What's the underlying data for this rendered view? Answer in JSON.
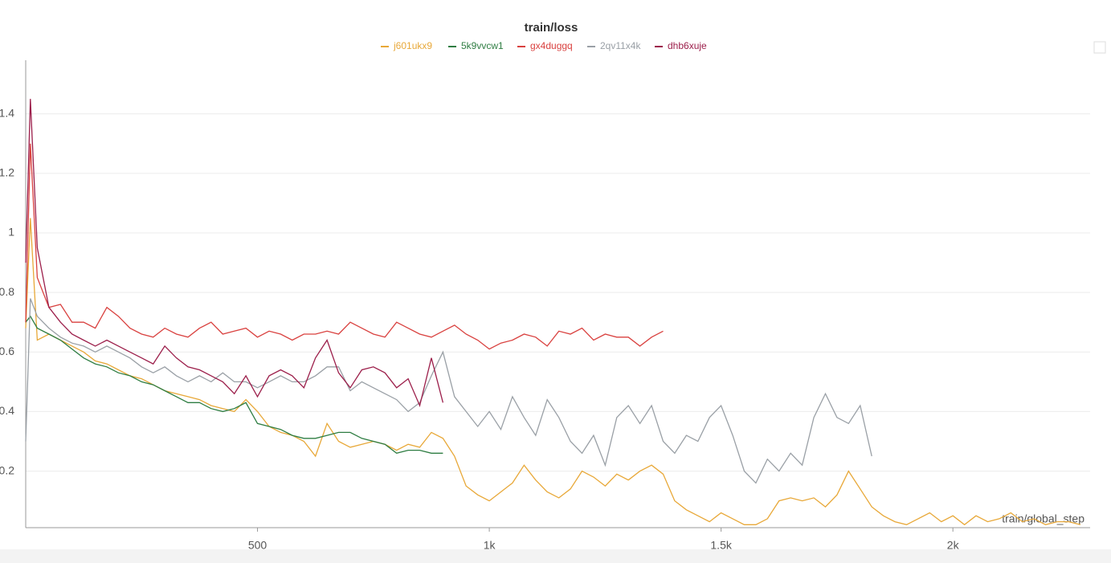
{
  "chart_data": {
    "type": "line",
    "title": "train/loss",
    "x_label": "train/global_step",
    "xlim": [
      0,
      2296
    ],
    "ylim": [
      0.01,
      1.58
    ],
    "xticks": [
      500,
      {
        "value": 1000,
        "label": "1k"
      },
      {
        "value": 1500,
        "label": "1.5k"
      },
      {
        "value": 2000,
        "label": "2k"
      }
    ],
    "yticks": [
      0.2,
      0.4,
      0.6,
      0.8,
      1,
      1.2,
      1.4
    ],
    "grid": true,
    "series": [
      {
        "name": "j601ukx9",
        "color": "#e8a838",
        "x": [
          0,
          10,
          25,
          50,
          75,
          100,
          125,
          150,
          175,
          200,
          225,
          250,
          275,
          300,
          325,
          350,
          375,
          400,
          425,
          450,
          475,
          500,
          525,
          550,
          575,
          600,
          625,
          650,
          675,
          700,
          725,
          750,
          775,
          800,
          825,
          850,
          875,
          900,
          925,
          950,
          975,
          1000,
          1025,
          1050,
          1075,
          1100,
          1125,
          1150,
          1175,
          1200,
          1225,
          1250,
          1275,
          1300,
          1325,
          1350,
          1375,
          1400,
          1425,
          1450,
          1475,
          1500,
          1525,
          1550,
          1575,
          1600,
          1625,
          1650,
          1675,
          1700,
          1725,
          1750,
          1775,
          1800,
          1825,
          1850,
          1875,
          1900,
          1925,
          1950,
          1975,
          2000,
          2025,
          2050,
          2075,
          2100,
          2125,
          2150,
          2175,
          2200,
          2225,
          2250,
          2275
        ],
        "values": [
          0.68,
          1.05,
          0.64,
          0.66,
          0.64,
          0.62,
          0.6,
          0.57,
          0.56,
          0.54,
          0.52,
          0.51,
          0.49,
          0.47,
          0.46,
          0.45,
          0.44,
          0.42,
          0.41,
          0.4,
          0.44,
          0.4,
          0.35,
          0.33,
          0.32,
          0.3,
          0.25,
          0.36,
          0.3,
          0.28,
          0.29,
          0.3,
          0.29,
          0.27,
          0.29,
          0.28,
          0.33,
          0.31,
          0.25,
          0.15,
          0.12,
          0.1,
          0.13,
          0.16,
          0.22,
          0.17,
          0.13,
          0.11,
          0.14,
          0.2,
          0.18,
          0.15,
          0.19,
          0.17,
          0.2,
          0.22,
          0.19,
          0.1,
          0.07,
          0.05,
          0.03,
          0.06,
          0.04,
          0.02,
          0.02,
          0.04,
          0.1,
          0.11,
          0.1,
          0.11,
          0.08,
          0.12,
          0.2,
          0.14,
          0.08,
          0.05,
          0.03,
          0.02,
          0.04,
          0.06,
          0.03,
          0.05,
          0.02,
          0.05,
          0.03,
          0.04,
          0.06,
          0.03,
          0.04,
          0.02,
          0.03,
          0.03,
          0.02
        ]
      },
      {
        "name": "5k9vvcw1",
        "color": "#2e7d42",
        "x": [
          0,
          10,
          25,
          50,
          75,
          100,
          125,
          150,
          175,
          200,
          225,
          250,
          275,
          300,
          325,
          350,
          375,
          400,
          425,
          450,
          475,
          500,
          525,
          550,
          575,
          600,
          625,
          650,
          675,
          700,
          725,
          750,
          775,
          800,
          825,
          850,
          875,
          900
        ],
        "values": [
          0.7,
          0.72,
          0.68,
          0.66,
          0.64,
          0.61,
          0.58,
          0.56,
          0.55,
          0.53,
          0.52,
          0.5,
          0.49,
          0.47,
          0.45,
          0.43,
          0.43,
          0.41,
          0.4,
          0.41,
          0.43,
          0.36,
          0.35,
          0.34,
          0.32,
          0.31,
          0.31,
          0.32,
          0.33,
          0.33,
          0.31,
          0.3,
          0.29,
          0.26,
          0.27,
          0.27,
          0.26,
          0.26
        ]
      },
      {
        "name": "gx4duggq",
        "color": "#d9413f",
        "x": [
          0,
          10,
          25,
          50,
          75,
          100,
          125,
          150,
          175,
          200,
          225,
          250,
          275,
          300,
          325,
          350,
          375,
          400,
          425,
          450,
          475,
          500,
          525,
          550,
          575,
          600,
          625,
          650,
          675,
          700,
          725,
          750,
          775,
          800,
          825,
          850,
          875,
          900,
          925,
          950,
          975,
          1000,
          1025,
          1050,
          1075,
          1100,
          1125,
          1150,
          1175,
          1200,
          1225,
          1250,
          1275,
          1300,
          1325,
          1350,
          1375
        ],
        "values": [
          0.7,
          1.3,
          0.85,
          0.75,
          0.76,
          0.7,
          0.7,
          0.68,
          0.75,
          0.72,
          0.68,
          0.66,
          0.65,
          0.68,
          0.66,
          0.65,
          0.68,
          0.7,
          0.66,
          0.67,
          0.68,
          0.65,
          0.67,
          0.66,
          0.64,
          0.66,
          0.66,
          0.67,
          0.66,
          0.7,
          0.68,
          0.66,
          0.65,
          0.7,
          0.68,
          0.66,
          0.65,
          0.67,
          0.69,
          0.66,
          0.64,
          0.61,
          0.63,
          0.64,
          0.66,
          0.65,
          0.62,
          0.67,
          0.66,
          0.68,
          0.64,
          0.66,
          0.65,
          0.65,
          0.62,
          0.65,
          0.67
        ]
      },
      {
        "name": "2qv11x4k",
        "color": "#9aa0a6",
        "x": [
          0,
          10,
          25,
          50,
          75,
          100,
          125,
          150,
          175,
          200,
          225,
          250,
          275,
          300,
          325,
          350,
          375,
          400,
          425,
          450,
          475,
          500,
          525,
          550,
          575,
          600,
          625,
          650,
          675,
          700,
          725,
          750,
          775,
          800,
          825,
          850,
          875,
          900,
          925,
          950,
          975,
          1000,
          1025,
          1050,
          1075,
          1100,
          1125,
          1150,
          1175,
          1200,
          1225,
          1250,
          1275,
          1300,
          1325,
          1350,
          1375,
          1400,
          1425,
          1450,
          1475,
          1500,
          1525,
          1550,
          1575,
          1600,
          1625,
          1650,
          1675,
          1700,
          1725,
          1750,
          1775,
          1800,
          1825
        ],
        "values": [
          0.3,
          0.78,
          0.72,
          0.68,
          0.65,
          0.63,
          0.62,
          0.6,
          0.62,
          0.6,
          0.58,
          0.55,
          0.53,
          0.55,
          0.52,
          0.5,
          0.52,
          0.5,
          0.53,
          0.5,
          0.5,
          0.48,
          0.5,
          0.52,
          0.5,
          0.5,
          0.52,
          0.55,
          0.55,
          0.47,
          0.5,
          0.48,
          0.46,
          0.44,
          0.4,
          0.43,
          0.52,
          0.6,
          0.45,
          0.4,
          0.35,
          0.4,
          0.34,
          0.45,
          0.38,
          0.32,
          0.44,
          0.38,
          0.3,
          0.26,
          0.32,
          0.22,
          0.38,
          0.42,
          0.36,
          0.42,
          0.3,
          0.26,
          0.32,
          0.3,
          0.38,
          0.42,
          0.32,
          0.2,
          0.16,
          0.24,
          0.2,
          0.26,
          0.22,
          0.38,
          0.46,
          0.38,
          0.36,
          0.42,
          0.25
        ]
      },
      {
        "name": "dhb6xuje",
        "color": "#9c1f4b",
        "x": [
          0,
          10,
          25,
          50,
          75,
          100,
          125,
          150,
          175,
          200,
          225,
          250,
          275,
          300,
          325,
          350,
          375,
          400,
          425,
          450,
          475,
          500,
          525,
          550,
          575,
          600,
          625,
          650,
          675,
          700,
          725,
          750,
          775,
          800,
          825,
          850,
          875,
          900
        ],
        "values": [
          0.9,
          1.45,
          0.95,
          0.75,
          0.7,
          0.66,
          0.64,
          0.62,
          0.64,
          0.62,
          0.6,
          0.58,
          0.56,
          0.62,
          0.58,
          0.55,
          0.54,
          0.52,
          0.5,
          0.46,
          0.52,
          0.45,
          0.52,
          0.54,
          0.52,
          0.48,
          0.58,
          0.64,
          0.53,
          0.48,
          0.54,
          0.55,
          0.53,
          0.48,
          0.51,
          0.42,
          0.58,
          0.43
        ]
      }
    ]
  }
}
